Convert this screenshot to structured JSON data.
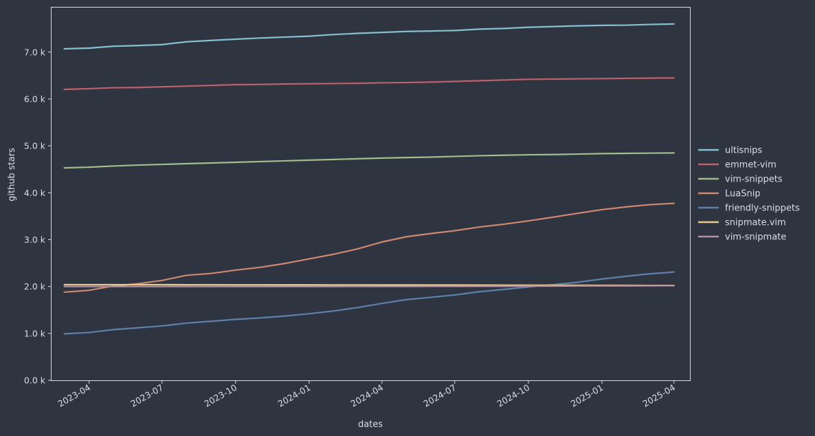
{
  "chart_data": {
    "type": "line",
    "title": "",
    "xlabel": "dates",
    "ylabel": "github stars",
    "ylim": [
      0,
      7950
    ],
    "xlim": [
      "2023-02-13",
      "2025-04-21"
    ],
    "grid": false,
    "legend_position": "right",
    "x": [
      "2023-03-01",
      "2023-04-01",
      "2023-05-01",
      "2023-06-01",
      "2023-07-01",
      "2023-08-01",
      "2023-09-01",
      "2023-10-01",
      "2023-11-01",
      "2023-12-01",
      "2024-01-01",
      "2024-02-01",
      "2024-03-01",
      "2024-04-01",
      "2024-05-01",
      "2024-06-01",
      "2024-07-01",
      "2024-08-01",
      "2024-09-01",
      "2024-10-01",
      "2024-11-01",
      "2024-12-01",
      "2025-01-01",
      "2025-02-01",
      "2025-03-01",
      "2025-04-01"
    ],
    "y_ticks": [
      {
        "value": 0,
        "label": "0.0 k"
      },
      {
        "value": 1000,
        "label": "1.0 k"
      },
      {
        "value": 2000,
        "label": "2.0 k"
      },
      {
        "value": 3000,
        "label": "3.0 k"
      },
      {
        "value": 4000,
        "label": "4.0 k"
      },
      {
        "value": 5000,
        "label": "5.0 k"
      },
      {
        "value": 6000,
        "label": "6.0 k"
      },
      {
        "value": 7000,
        "label": "7.0 k"
      }
    ],
    "x_ticks": [
      {
        "value": "2023-04-01",
        "label": "2023-04"
      },
      {
        "value": "2023-07-01",
        "label": "2023-07"
      },
      {
        "value": "2023-10-01",
        "label": "2023-10"
      },
      {
        "value": "2024-01-01",
        "label": "2024-01"
      },
      {
        "value": "2024-04-01",
        "label": "2024-04"
      },
      {
        "value": "2024-07-01",
        "label": "2024-07"
      },
      {
        "value": "2024-10-01",
        "label": "2024-10"
      },
      {
        "value": "2025-01-01",
        "label": "2025-01"
      },
      {
        "value": "2025-04-01",
        "label": "2025-04"
      }
    ],
    "series": [
      {
        "name": "ultisnips",
        "color": "#88c0d0",
        "values": [
          7070,
          7085,
          7125,
          7140,
          7160,
          7220,
          7250,
          7275,
          7300,
          7320,
          7340,
          7375,
          7400,
          7420,
          7440,
          7450,
          7460,
          7490,
          7505,
          7530,
          7545,
          7560,
          7570,
          7575,
          7590,
          7600
        ]
      },
      {
        "name": "emmet-vim",
        "color": "#bf616a",
        "values": [
          6205,
          6220,
          6240,
          6245,
          6260,
          6275,
          6290,
          6305,
          6310,
          6320,
          6325,
          6330,
          6335,
          6345,
          6350,
          6360,
          6375,
          6390,
          6405,
          6420,
          6425,
          6430,
          6435,
          6440,
          6445,
          6450
        ]
      },
      {
        "name": "vim-snippets",
        "color": "#a3be8c",
        "values": [
          4530,
          4545,
          4570,
          4590,
          4605,
          4620,
          4635,
          4650,
          4665,
          4680,
          4695,
          4710,
          4725,
          4740,
          4750,
          4760,
          4775,
          4790,
          4800,
          4810,
          4815,
          4825,
          4835,
          4840,
          4845,
          4850
        ]
      },
      {
        "name": "LuaSnip",
        "color": "#d08770",
        "values": [
          1880,
          1920,
          2010,
          2060,
          2130,
          2240,
          2280,
          2350,
          2410,
          2490,
          2590,
          2690,
          2800,
          2950,
          3060,
          3130,
          3190,
          3270,
          3330,
          3400,
          3480,
          3560,
          3640,
          3700,
          3745,
          3775
        ]
      },
      {
        "name": "friendly-snippets",
        "color": "#5e81ac",
        "values": [
          990,
          1020,
          1080,
          1120,
          1160,
          1220,
          1260,
          1300,
          1330,
          1370,
          1420,
          1480,
          1550,
          1640,
          1720,
          1770,
          1820,
          1890,
          1940,
          1990,
          2040,
          2090,
          2160,
          2220,
          2270,
          2310
        ]
      },
      {
        "name": "snipmate.vim",
        "color": "#ebcb8b",
        "values": [
          2040,
          2040,
          2040,
          2040,
          2040,
          2038,
          2038,
          2036,
          2036,
          2035,
          2035,
          2034,
          2034,
          2033,
          2033,
          2032,
          2031,
          2030,
          2029,
          2028,
          2027,
          2026,
          2025,
          2024,
          2023,
          2022
        ]
      },
      {
        "name": "vim-snipmate",
        "color": "#b48ead",
        "values": [
          2000,
          2000,
          2000,
          2000,
          2000,
          2000,
          2000,
          2000,
          2000,
          2000,
          2000,
          2000,
          2002,
          2002,
          2002,
          2004,
          2004,
          2005,
          2006,
          2008,
          2010,
          2012,
          2014,
          2015,
          2017,
          2018
        ]
      }
    ]
  }
}
